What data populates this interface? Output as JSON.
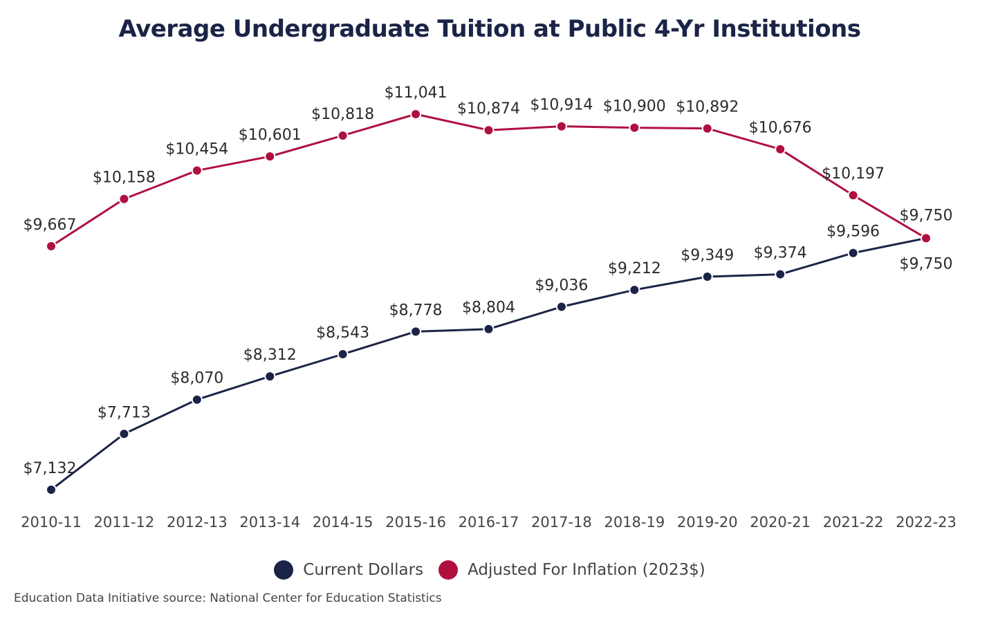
{
  "chart_data": {
    "type": "line",
    "title": "Average Undergraduate Tuition at Public 4-Yr Institutions",
    "categories": [
      "2010-11",
      "2011-12",
      "2012-13",
      "2013-14",
      "2014-15",
      "2015-16",
      "2016-17",
      "2017-18",
      "2018-19",
      "2019-20",
      "2020-21",
      "2021-22",
      "2022-23"
    ],
    "series": [
      {
        "name": "Current Dollars",
        "color": "#1b2447",
        "values": [
          7132,
          7713,
          8070,
          8312,
          8543,
          8778,
          8804,
          9036,
          9212,
          9349,
          9374,
          9596,
          9750
        ],
        "labels": [
          "$7,132",
          "$7,713",
          "$8,070",
          "$8,312",
          "$8,543",
          "$8,778",
          "$8,804",
          "$9,036",
          "$9,212",
          "$9,349",
          "$9,374",
          "$9,596",
          "$9,750"
        ]
      },
      {
        "name": "Adjusted For Inflation (2023$)",
        "color": "#b01040",
        "values": [
          9667,
          10158,
          10454,
          10601,
          10818,
          11041,
          10874,
          10914,
          10900,
          10892,
          10676,
          10197,
          9750
        ],
        "labels": [
          "$9,667",
          "$10,158",
          "$10,454",
          "$10,601",
          "$10,818",
          "$11,041",
          "$10,874",
          "$10,914",
          "$10,900",
          "$10,892",
          "$10,676",
          "$10,197",
          "$9,750"
        ]
      }
    ],
    "xlabel": "",
    "ylabel": "",
    "grid": false,
    "legend_position": "bottom"
  },
  "source": "Education Data Initiative source: National Center for Education Statistics"
}
